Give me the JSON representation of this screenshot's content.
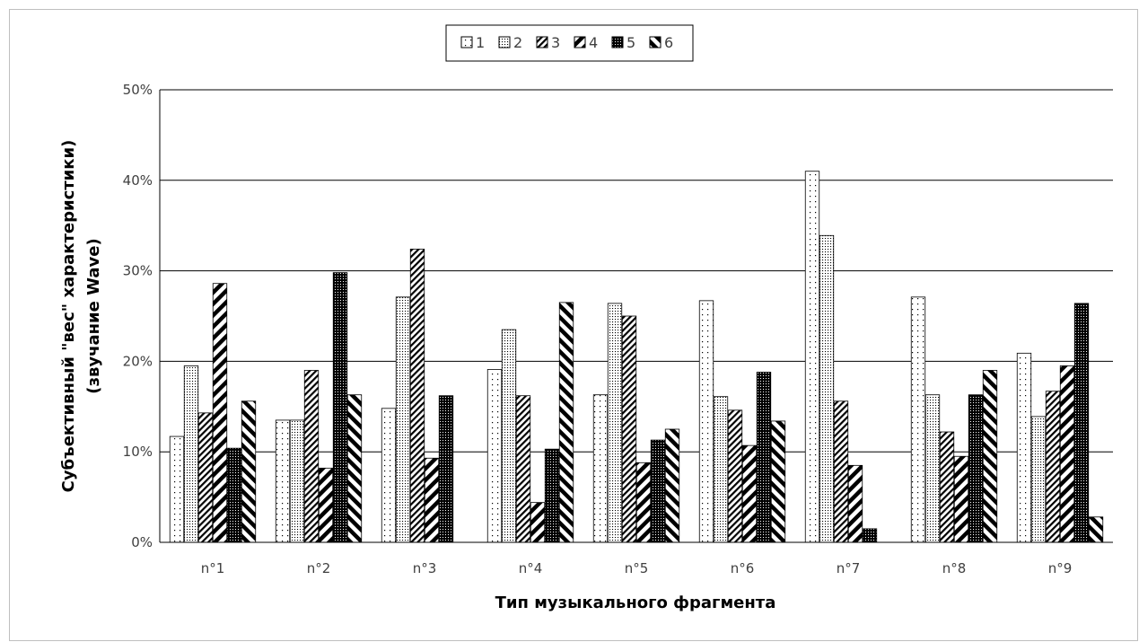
{
  "chart_data": {
    "type": "bar",
    "categories": [
      "n°1",
      "n°2",
      "n°3",
      "n°4",
      "n°5",
      "n°6",
      "n°7",
      "n°8",
      "n°9"
    ],
    "series": [
      {
        "name": "1",
        "values": [
          11.7,
          13.5,
          14.8,
          19.1,
          16.3,
          26.7,
          41.0,
          27.1,
          20.9
        ]
      },
      {
        "name": "2",
        "values": [
          19.5,
          13.5,
          27.1,
          23.5,
          26.4,
          16.1,
          33.9,
          16.3,
          13.9
        ]
      },
      {
        "name": "3",
        "values": [
          14.3,
          19.0,
          32.4,
          16.2,
          25.0,
          14.6,
          15.6,
          12.2,
          16.7
        ]
      },
      {
        "name": "4",
        "values": [
          28.6,
          8.2,
          9.3,
          4.4,
          8.8,
          10.7,
          8.5,
          9.5,
          19.5
        ]
      },
      {
        "name": "5",
        "values": [
          10.4,
          29.8,
          16.2,
          10.3,
          11.3,
          18.8,
          1.5,
          16.3,
          26.4
        ]
      },
      {
        "name": "6",
        "values": [
          15.6,
          16.3,
          0,
          26.5,
          12.5,
          13.4,
          0,
          19.0,
          2.8
        ]
      }
    ],
    "y_ticks": [
      "0%",
      "10%",
      "20%",
      "30%",
      "40%",
      "50%"
    ],
    "ylim": [
      0,
      50
    ],
    "y_unit": "%",
    "xlabel": "Тип музыкального фрагмента",
    "ylabel_lines": [
      "Субъективный \"вес\" характеристики)",
      "(звучание Wave)"
    ],
    "grid": true,
    "legend_position": "top-center"
  }
}
